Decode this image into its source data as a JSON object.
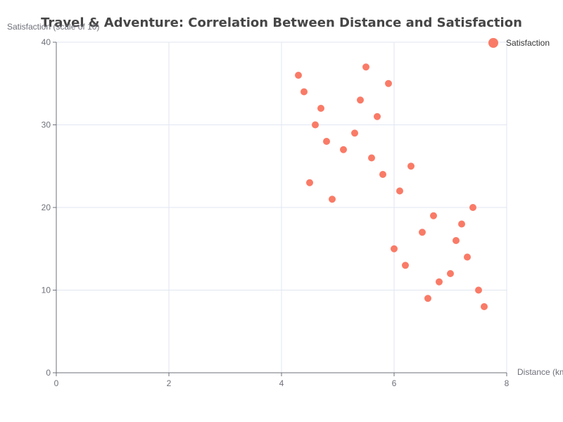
{
  "chart_data": {
    "type": "scatter",
    "title": "Travel & Adventure: Correlation Between Distance and Satisfaction",
    "xlabel": "Distance (km)",
    "ylabel": "Satisfaction (scale of 10)",
    "xlim": [
      0,
      8
    ],
    "ylim": [
      0,
      40
    ],
    "x_ticks": [
      0,
      2,
      4,
      6,
      8
    ],
    "y_ticks": [
      0,
      10,
      20,
      30,
      40
    ],
    "grid": true,
    "legend_position": "top-right",
    "series": [
      {
        "name": "Satisfaction",
        "color": "#f97b67",
        "points": [
          {
            "x": 4.3,
            "y": 36
          },
          {
            "x": 4.4,
            "y": 34
          },
          {
            "x": 4.5,
            "y": 23
          },
          {
            "x": 4.6,
            "y": 30
          },
          {
            "x": 4.7,
            "y": 32
          },
          {
            "x": 4.8,
            "y": 28
          },
          {
            "x": 4.9,
            "y": 21
          },
          {
            "x": 5.1,
            "y": 27
          },
          {
            "x": 5.3,
            "y": 29
          },
          {
            "x": 5.4,
            "y": 33
          },
          {
            "x": 5.5,
            "y": 37
          },
          {
            "x": 5.6,
            "y": 26
          },
          {
            "x": 5.7,
            "y": 31
          },
          {
            "x": 5.8,
            "y": 24
          },
          {
            "x": 5.9,
            "y": 35
          },
          {
            "x": 6.0,
            "y": 15
          },
          {
            "x": 6.1,
            "y": 22
          },
          {
            "x": 6.2,
            "y": 13
          },
          {
            "x": 6.3,
            "y": 25
          },
          {
            "x": 6.5,
            "y": 17
          },
          {
            "x": 6.6,
            "y": 9
          },
          {
            "x": 6.7,
            "y": 19
          },
          {
            "x": 6.8,
            "y": 11
          },
          {
            "x": 7.0,
            "y": 12
          },
          {
            "x": 7.1,
            "y": 16
          },
          {
            "x": 7.2,
            "y": 18
          },
          {
            "x": 7.3,
            "y": 14
          },
          {
            "x": 7.4,
            "y": 20
          },
          {
            "x": 7.5,
            "y": 10
          },
          {
            "x": 7.6,
            "y": 8
          }
        ]
      }
    ]
  }
}
